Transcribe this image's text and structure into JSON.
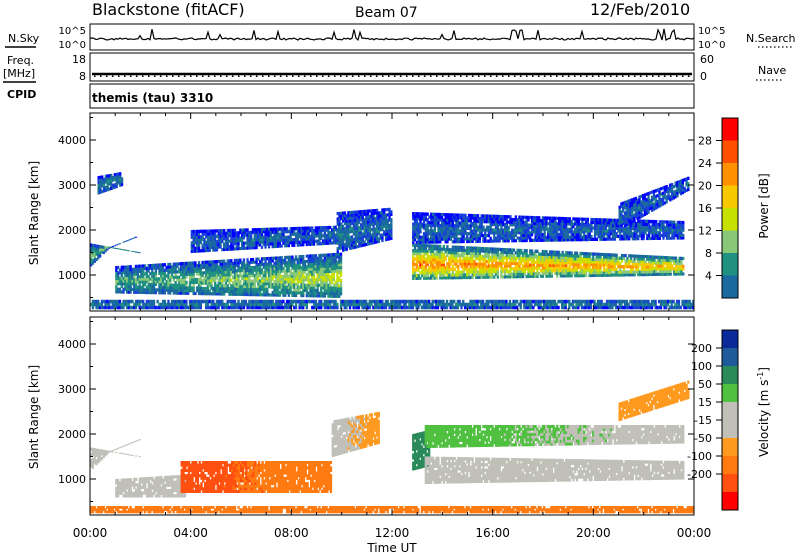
{
  "header": {
    "station": "Blackstone (fitACF)",
    "beam": "Beam 07",
    "date": "12/Feb/2010"
  },
  "strips": {
    "nsky_label": "N.Sky",
    "nsearch_label": "N.Search",
    "noise_left_ticks": [
      "10^5",
      "10^0"
    ],
    "noise_right_ticks": [
      "10^5",
      "10^0"
    ],
    "freq_label": "Freq.",
    "freq_unit": "[MHz]",
    "freq_ticks": [
      "18",
      "8"
    ],
    "nave_label": "Nave",
    "nave_ticks": [
      "60",
      "0"
    ],
    "cpid_label": "CPID",
    "cpid_value": "themis (tau) 3310"
  },
  "power_colorbar": {
    "title": "Power [dB]",
    "ticks": [
      "28",
      "24",
      "20",
      "16",
      "12",
      "8",
      "4"
    ],
    "colors": [
      "#ff0000",
      "#ff5000",
      "#ff9000",
      "#f8c800",
      "#c8e000",
      "#88c878",
      "#209080",
      "#1a6aa0",
      "#1840d8",
      "#0000ff"
    ]
  },
  "velocity_colorbar": {
    "title": "Velocity [m s",
    "title_sup": "-1",
    "title_close": "]",
    "ticks": [
      "200",
      "100",
      "50",
      "15",
      "-15",
      "-50",
      "-100",
      "-200"
    ],
    "colors": [
      "#0a2a9a",
      "#1f5a9a",
      "#2a8a5a",
      "#50c040",
      "#c0c0b8",
      "#c0c0b8",
      "#ff9a20",
      "#ff7a10",
      "#ff5010",
      "#ff0000"
    ]
  },
  "chart_data": [
    {
      "type": "heatmap",
      "name": "power",
      "ylabel": "Slant Range [km]",
      "xlim": [
        0,
        24
      ],
      "ylim": [
        200,
        4600
      ],
      "yticks": [
        1000,
        2000,
        3000,
        4000
      ],
      "xticks": [
        "00:00",
        "04:00",
        "08:00",
        "12:00",
        "16:00",
        "20:00",
        "00:00"
      ],
      "bands": [
        {
          "t0": 0.0,
          "t1": 2.0,
          "r_lo": [
            1200,
            2300
          ],
          "r_hi": [
            1700,
            1500
          ],
          "values": [
            14,
            10
          ]
        },
        {
          "t0": 0.3,
          "t1": 1.3,
          "r_lo": [
            2800,
            3000
          ],
          "r_hi": [
            3200,
            3300
          ],
          "values": [
            8,
            8
          ]
        },
        {
          "t0": 1.0,
          "t1": 10.0,
          "r_lo": [
            600,
            500
          ],
          "r_hi": [
            1200,
            1500
          ],
          "values": [
            12,
            18
          ]
        },
        {
          "t0": 4.0,
          "t1": 10.0,
          "r_lo": [
            1500,
            1700
          ],
          "r_hi": [
            2000,
            2100
          ],
          "values": [
            6,
            6
          ]
        },
        {
          "t0": 9.8,
          "t1": 12.0,
          "r_lo": [
            1500,
            1800
          ],
          "r_hi": [
            2400,
            2500
          ],
          "values": [
            8,
            6
          ]
        },
        {
          "t0": 12.8,
          "t1": 23.6,
          "r_lo": [
            900,
            1000
          ],
          "r_hi": [
            1700,
            1400
          ],
          "values": [
            28,
            24
          ]
        },
        {
          "t0": 12.8,
          "t1": 23.6,
          "r_lo": [
            1700,
            1800
          ],
          "r_hi": [
            2400,
            2200
          ],
          "values": [
            6,
            6
          ]
        },
        {
          "t0": 21.0,
          "t1": 23.8,
          "r_lo": [
            2000,
            2900
          ],
          "r_hi": [
            2600,
            3200
          ],
          "values": [
            6,
            6
          ]
        },
        {
          "t0": 0.0,
          "t1": 24.0,
          "r_lo": [
            250,
            250
          ],
          "r_hi": [
            450,
            450
          ],
          "values": [
            8,
            8
          ]
        }
      ]
    },
    {
      "type": "heatmap",
      "name": "velocity",
      "ylabel": "Slant Range [km]",
      "xlabel": "Time UT",
      "xlim": [
        0,
        24
      ],
      "ylim": [
        200,
        4600
      ],
      "yticks": [
        1000,
        2000,
        3000,
        4000
      ],
      "xticks": [
        "00:00",
        "04:00",
        "08:00",
        "12:00",
        "16:00",
        "20:00",
        "00:00"
      ],
      "bands": [
        {
          "t0": 0.0,
          "t1": 2.0,
          "r_lo": [
            1200,
            2300
          ],
          "r_hi": [
            1700,
            1500
          ],
          "values": [
            0,
            0
          ]
        },
        {
          "t0": 1.0,
          "t1": 3.8,
          "r_lo": [
            600,
            600
          ],
          "r_hi": [
            1000,
            1100
          ],
          "values": [
            0,
            0
          ]
        },
        {
          "t0": 3.6,
          "t1": 9.6,
          "r_lo": [
            700,
            700
          ],
          "r_hi": [
            1400,
            1400
          ],
          "values": [
            -120,
            -70
          ]
        },
        {
          "t0": 9.6,
          "t1": 11.5,
          "r_lo": [
            1500,
            1800
          ],
          "r_hi": [
            2300,
            2500
          ],
          "values": [
            0,
            -30
          ]
        },
        {
          "t0": 12.8,
          "t1": 13.5,
          "r_lo": [
            1200,
            1300
          ],
          "r_hi": [
            2000,
            2100
          ],
          "values": [
            60,
            60
          ]
        },
        {
          "t0": 13.3,
          "t1": 23.6,
          "r_lo": [
            900,
            1000
          ],
          "r_hi": [
            1500,
            1400
          ],
          "values": [
            0,
            0
          ]
        },
        {
          "t0": 13.3,
          "t1": 23.6,
          "r_lo": [
            1700,
            1800
          ],
          "r_hi": [
            2200,
            2200
          ],
          "values": [
            30,
            0
          ]
        },
        {
          "t0": 21.0,
          "t1": 23.8,
          "r_lo": [
            2300,
            2800
          ],
          "r_hi": [
            2700,
            3200
          ],
          "values": [
            -40,
            -40
          ]
        },
        {
          "t0": 0.0,
          "t1": 24.0,
          "r_lo": [
            250,
            250
          ],
          "r_hi": [
            400,
            400
          ],
          "values": [
            -60,
            -60
          ]
        }
      ]
    }
  ]
}
